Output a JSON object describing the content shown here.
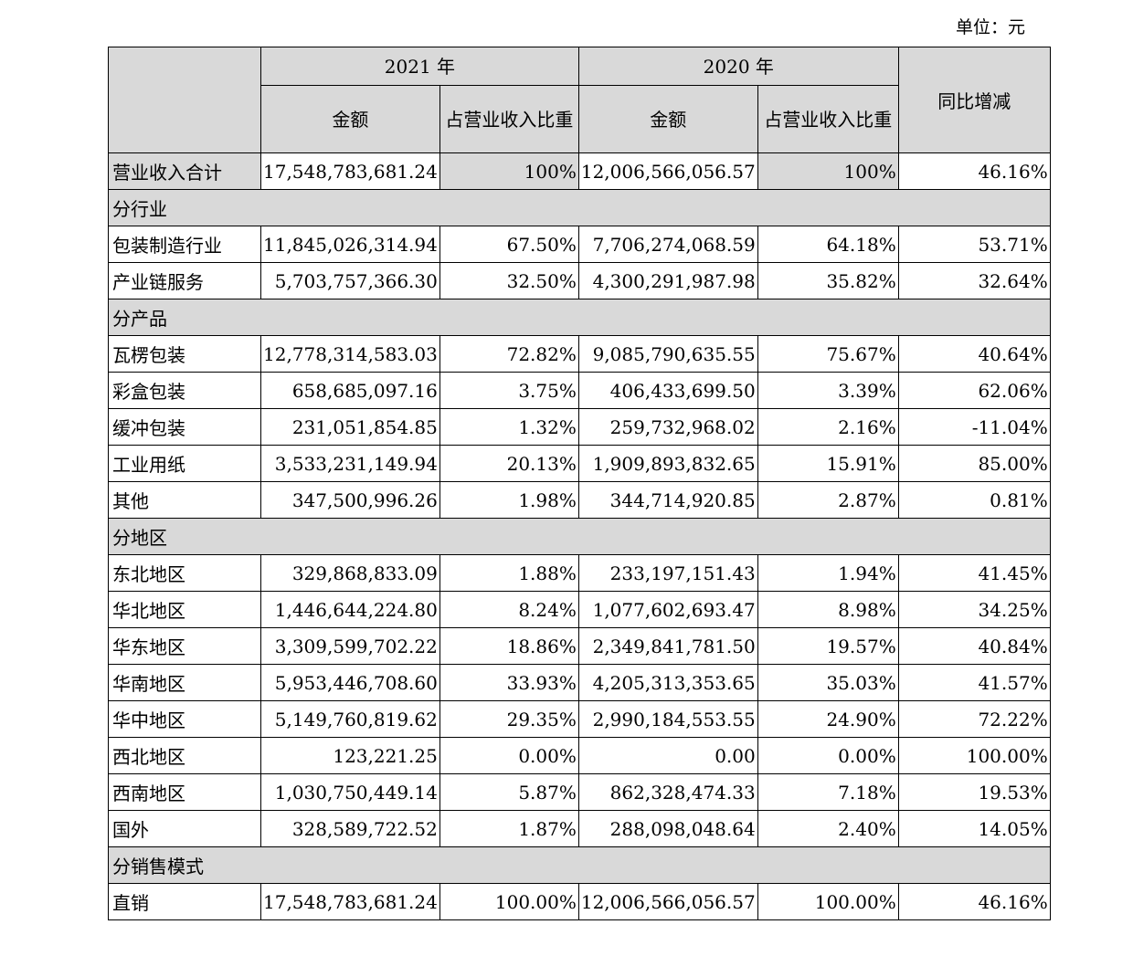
{
  "unit_label": "单位：元",
  "header": {
    "year_2021": "2021 年",
    "year_2020": "2020 年",
    "yoy": "同比增减",
    "amount": "金额",
    "ratio": "占营业收入比重"
  },
  "total_row": {
    "label": "营业收入合计",
    "amt2021": "17,548,783,681.24",
    "pct2021": "100%",
    "amt2020": "12,006,566,056.57",
    "pct2020": "100%",
    "yoy": "46.16%"
  },
  "sections": [
    {
      "title": "分行业",
      "rows": [
        {
          "label": "包装制造行业",
          "amt2021": "11,845,026,314.94",
          "pct2021": "67.50%",
          "amt2020": "7,706,274,068.59",
          "pct2020": "64.18%",
          "yoy": "53.71%"
        },
        {
          "label": "产业链服务",
          "amt2021": "5,703,757,366.30",
          "pct2021": "32.50%",
          "amt2020": "4,300,291,987.98",
          "pct2020": "35.82%",
          "yoy": "32.64%"
        }
      ]
    },
    {
      "title": "分产品",
      "rows": [
        {
          "label": "瓦楞包装",
          "amt2021": "12,778,314,583.03",
          "pct2021": "72.82%",
          "amt2020": "9,085,790,635.55",
          "pct2020": "75.67%",
          "yoy": "40.64%"
        },
        {
          "label": "彩盒包装",
          "amt2021": "658,685,097.16",
          "pct2021": "3.75%",
          "amt2020": "406,433,699.50",
          "pct2020": "3.39%",
          "yoy": "62.06%"
        },
        {
          "label": "缓冲包装",
          "amt2021": "231,051,854.85",
          "pct2021": "1.32%",
          "amt2020": "259,732,968.02",
          "pct2020": "2.16%",
          "yoy": "-11.04%"
        },
        {
          "label": "工业用纸",
          "amt2021": "3,533,231,149.94",
          "pct2021": "20.13%",
          "amt2020": "1,909,893,832.65",
          "pct2020": "15.91%",
          "yoy": "85.00%"
        },
        {
          "label": "其他",
          "amt2021": "347,500,996.26",
          "pct2021": "1.98%",
          "amt2020": "344,714,920.85",
          "pct2020": "2.87%",
          "yoy": "0.81%"
        }
      ]
    },
    {
      "title": "分地区",
      "rows": [
        {
          "label": "东北地区",
          "amt2021": "329,868,833.09",
          "pct2021": "1.88%",
          "amt2020": "233,197,151.43",
          "pct2020": "1.94%",
          "yoy": "41.45%"
        },
        {
          "label": "华北地区",
          "amt2021": "1,446,644,224.80",
          "pct2021": "8.24%",
          "amt2020": "1,077,602,693.47",
          "pct2020": "8.98%",
          "yoy": "34.25%"
        },
        {
          "label": "华东地区",
          "amt2021": "3,309,599,702.22",
          "pct2021": "18.86%",
          "amt2020": "2,349,841,781.50",
          "pct2020": "19.57%",
          "yoy": "40.84%"
        },
        {
          "label": "华南地区",
          "amt2021": "5,953,446,708.60",
          "pct2021": "33.93%",
          "amt2020": "4,205,313,353.65",
          "pct2020": "35.03%",
          "yoy": "41.57%"
        },
        {
          "label": "华中地区",
          "amt2021": "5,149,760,819.62",
          "pct2021": "29.35%",
          "amt2020": "2,990,184,553.55",
          "pct2020": "24.90%",
          "yoy": "72.22%"
        },
        {
          "label": "西北地区",
          "amt2021": "123,221.25",
          "pct2021": "0.00%",
          "amt2020": "0.00",
          "pct2020": "0.00%",
          "yoy": "100.00%"
        },
        {
          "label": "西南地区",
          "amt2021": "1,030,750,449.14",
          "pct2021": "5.87%",
          "amt2020": "862,328,474.33",
          "pct2020": "7.18%",
          "yoy": "19.53%"
        },
        {
          "label": "国外",
          "amt2021": "328,589,722.52",
          "pct2021": "1.87%",
          "amt2020": "288,098,048.64",
          "pct2020": "2.40%",
          "yoy": "14.05%"
        }
      ]
    },
    {
      "title": "分销售模式",
      "rows": [
        {
          "label": "直销",
          "amt2021": "17,548,783,681.24",
          "pct2021": "100.00%",
          "amt2020": "12,006,566,056.57",
          "pct2020": "100.00%",
          "yoy": "46.16%"
        }
      ]
    }
  ]
}
